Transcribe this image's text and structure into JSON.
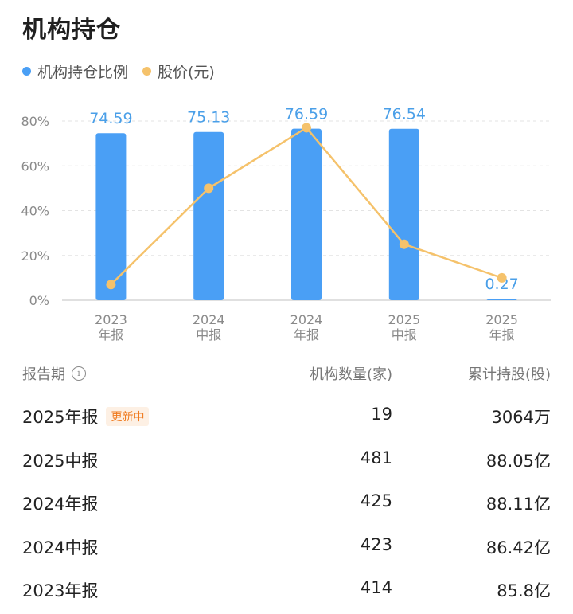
{
  "title": "机构持仓",
  "colors": {
    "bar": "#4a9ff5",
    "line": "#f5c26b",
    "grid": "#e3e3e3",
    "badge_text": "#f07a1e",
    "badge_bg": "#fdf0e4"
  },
  "chart_data": {
    "type": "bar",
    "categories": [
      [
        "2023",
        "年报"
      ],
      [
        "2024",
        "中报"
      ],
      [
        "2024",
        "年报"
      ],
      [
        "2025",
        "中报"
      ],
      [
        "2025",
        "年报"
      ]
    ],
    "series": [
      {
        "name": "机构持仓比例",
        "type": "bar",
        "values": [
          74.59,
          75.13,
          76.59,
          76.54,
          0.27
        ],
        "labels": [
          "74.59",
          "75.13",
          "76.59",
          "76.54",
          "0.27"
        ]
      },
      {
        "name": "股价(元)",
        "type": "line",
        "values": [
          7,
          50,
          77,
          25,
          10
        ]
      }
    ],
    "yticks": [
      "0%",
      "20%",
      "40%",
      "60%",
      "80%"
    ],
    "ylim": [
      0,
      80
    ],
    "grid": true,
    "legend_position": "top-left"
  },
  "table": {
    "headers": {
      "period": "报告期",
      "info_icon": "info-icon",
      "count": "机构数量(家)",
      "holding": "累计持股(股)"
    },
    "rows": [
      {
        "period": "2025年报",
        "badge": "更新中",
        "count": "19",
        "holding": "3064万"
      },
      {
        "period": "2025中报",
        "badge": "",
        "count": "481",
        "holding": "88.05亿"
      },
      {
        "period": "2024年报",
        "badge": "",
        "count": "425",
        "holding": "88.11亿"
      },
      {
        "period": "2024中报",
        "badge": "",
        "count": "423",
        "holding": "86.42亿"
      },
      {
        "period": "2023年报",
        "badge": "",
        "count": "414",
        "holding": "85.8亿"
      }
    ]
  }
}
